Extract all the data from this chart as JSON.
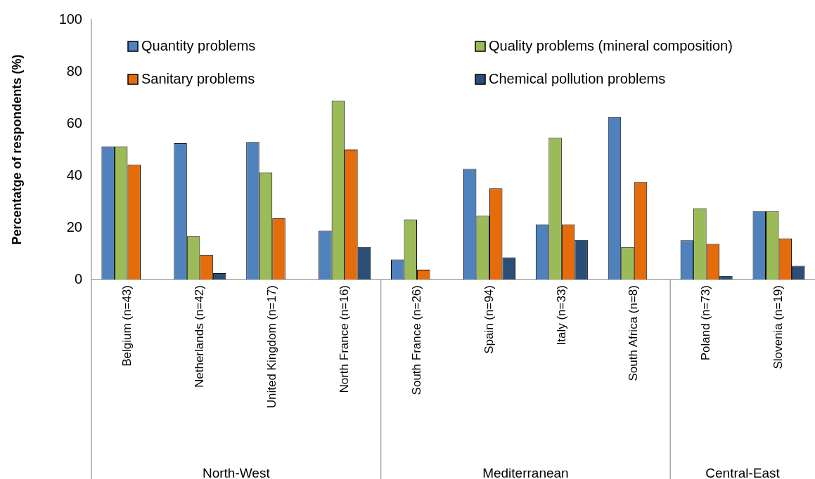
{
  "chart_data": {
    "type": "bar",
    "ylabel": "Percentatge of respondents (%)",
    "categories": [
      "Belgium (n=43)",
      "Netherlands (n=42)",
      "United Kingdom (n=17)",
      "North France (n=16)",
      "South France (n=26)",
      "Spain (n=94)",
      "Italy (n=33)",
      "South Africa (n=8)",
      "Poland (n=73)",
      "Slovenia (n=19)"
    ],
    "series": [
      {
        "name": "Quantity problems",
        "color": "#4f81bd",
        "values": [
          51.2,
          52.4,
          52.9,
          18.8,
          7.7,
          42.6,
          21.2,
          62.5,
          15.1,
          26.3
        ]
      },
      {
        "name": "Quality problems (mineral composition)",
        "color": "#9bbb59",
        "values": [
          51.2,
          16.7,
          41.2,
          68.8,
          23.1,
          24.5,
          54.5,
          12.5,
          27.4,
          26.3
        ]
      },
      {
        "name": "Sanitary problems",
        "color": "#e46c0a",
        "values": [
          44.2,
          9.5,
          23.5,
          50.0,
          3.8,
          35.1,
          21.2,
          37.5,
          13.7,
          15.8
        ]
      },
      {
        "name": "Chemical pollution problems",
        "color": "#2c4d75",
        "values": [
          0,
          2.4,
          0,
          12.5,
          0,
          8.5,
          15.2,
          0,
          1.4,
          5.3
        ]
      }
    ],
    "ylim": [
      0,
      100
    ],
    "yticks": [
      0,
      20,
      40,
      60,
      80,
      100
    ],
    "grid": false,
    "legend": "top",
    "annotations": [
      "North-West",
      "Mediterranean",
      "Central-East"
    ]
  }
}
